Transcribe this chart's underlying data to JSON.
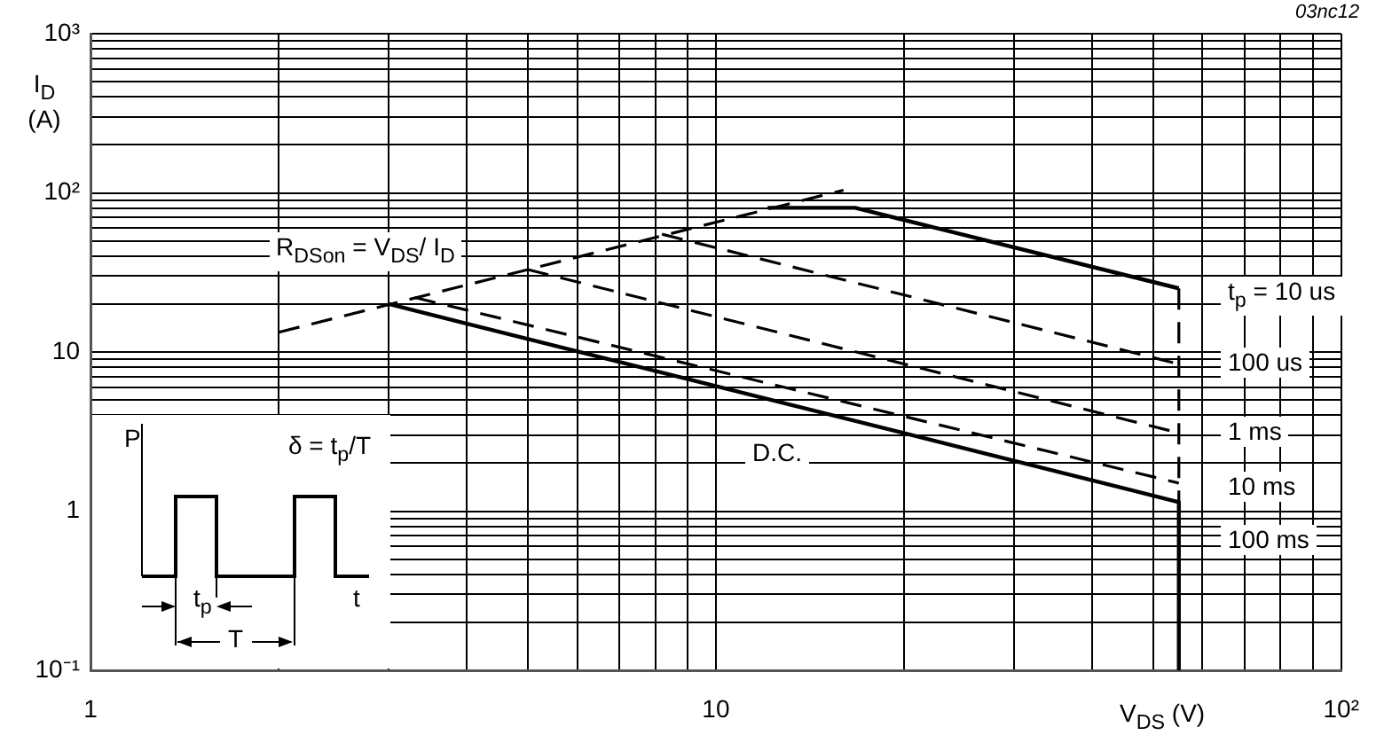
{
  "chart_data": {
    "type": "line",
    "xlabel": "V$_{DS}$ (V)",
    "ylabel": "I$_{D}$ (A)",
    "log": "xy",
    "grid": true,
    "legend": false,
    "xlim": [
      1,
      100
    ],
    "ylim": [
      0.1,
      1000
    ],
    "xticks": [
      1,
      {
        "value": 2,
        "label": null
      },
      {
        "value": 3,
        "label": null
      },
      {
        "value": 4,
        "label": null
      },
      {
        "value": 5,
        "label": null
      },
      {
        "value": 6,
        "label": null
      },
      {
        "value": 7,
        "label": null
      },
      {
        "value": 8,
        "label": null
      },
      {
        "value": 9,
        "label": null
      },
      10,
      {
        "value": 20,
        "label": null
      },
      {
        "value": 30,
        "label": null
      },
      {
        "value": 40,
        "label": null
      },
      {
        "value": 50,
        "label": null
      },
      {
        "value": 60,
        "label": null
      },
      {
        "value": 70,
        "label": null
      },
      {
        "value": 80,
        "label": null
      },
      {
        "value": 90,
        "label": null
      },
      {
        "value": 100,
        "label": "10²"
      }
    ],
    "yticks": [
      {
        "value": 0.1,
        "label": "10⁻¹"
      },
      {
        "value": 0.2,
        "label": null
      },
      {
        "value": 0.3,
        "label": null
      },
      {
        "value": 0.4,
        "label": null
      },
      {
        "value": 0.5,
        "label": null
      },
      {
        "value": 0.6,
        "label": null
      },
      {
        "value": 0.7,
        "label": null
      },
      {
        "value": 0.8,
        "label": null
      },
      {
        "value": 0.9,
        "label": null
      },
      1,
      {
        "value": 2,
        "label": null
      },
      {
        "value": 3,
        "label": null
      },
      {
        "value": 4,
        "label": null
      },
      {
        "value": 5,
        "label": null
      },
      {
        "value": 6,
        "label": null
      },
      {
        "value": 7,
        "label": null
      },
      {
        "value": 8,
        "label": null
      },
      {
        "value": 9,
        "label": null
      },
      10,
      {
        "value": 20,
        "label": null
      },
      {
        "value": 30,
        "label": null
      },
      {
        "value": 40,
        "label": null
      },
      {
        "value": 50,
        "label": null
      },
      {
        "value": 60,
        "label": null
      },
      {
        "value": 70,
        "label": null
      },
      {
        "value": 80,
        "label": null
      },
      {
        "value": 90,
        "label": null
      },
      {
        "value": 100,
        "label": "10²"
      },
      {
        "value": 200,
        "label": null
      },
      {
        "value": 300,
        "label": null
      },
      {
        "value": 400,
        "label": null
      },
      {
        "value": 500,
        "label": null
      },
      {
        "value": 600,
        "label": null
      },
      {
        "value": 700,
        "label": null
      },
      {
        "value": 800,
        "label": null
      },
      {
        "value": 900,
        "label": null
      },
      {
        "value": 1000,
        "label": "10³"
      }
    ],
    "series": [
      {
        "type": "line",
        "color": "#000000",
        "line_style": "dashed",
        "x": [
          2,
          16
        ],
        "values": [
          13.3,
          104
        ]
      },
      {
        "type": "line",
        "color": "#000000",
        "line_style": "solid",
        "x": [
          12.1,
          16.7,
          55
        ],
        "values": [
          80.5,
          80.5,
          25.1
        ]
      },
      {
        "type": "line",
        "color": "#000000",
        "line_style": "dashed",
        "x": [
          8.2,
          55
        ],
        "values": [
          55,
          8.4
        ]
      },
      {
        "type": "line",
        "color": "#000000",
        "line_style": "dashed",
        "x": [
          5,
          55
        ],
        "values": [
          33,
          3.1
        ]
      },
      {
        "type": "line",
        "color": "#000000",
        "line_style": "dashed",
        "x": [
          3.3,
          55
        ],
        "values": [
          22,
          1.5
        ]
      },
      {
        "type": "line",
        "color": "#000000",
        "line_style": "solid",
        "x": [
          3,
          55,
          55
        ],
        "values": [
          20,
          1.14,
          0.1
        ]
      },
      {
        "type": "line",
        "color": "#000000",
        "line_style": "dashed",
        "x": [
          55,
          55
        ],
        "values": [
          25.1,
          1.14
        ]
      }
    ],
    "annotations": [
      "03nc12",
      "R$_{DSon}$ = V$_{DS}$/ I$_{D}$",
      "t$_{p}$ = 10 us",
      "100 us",
      "1 ms",
      "10 ms",
      "100 ms",
      "D.C.",
      "P",
      "δ = t$_{p}$/T",
      "t$_{p}$",
      "T",
      "t"
    ]
  }
}
